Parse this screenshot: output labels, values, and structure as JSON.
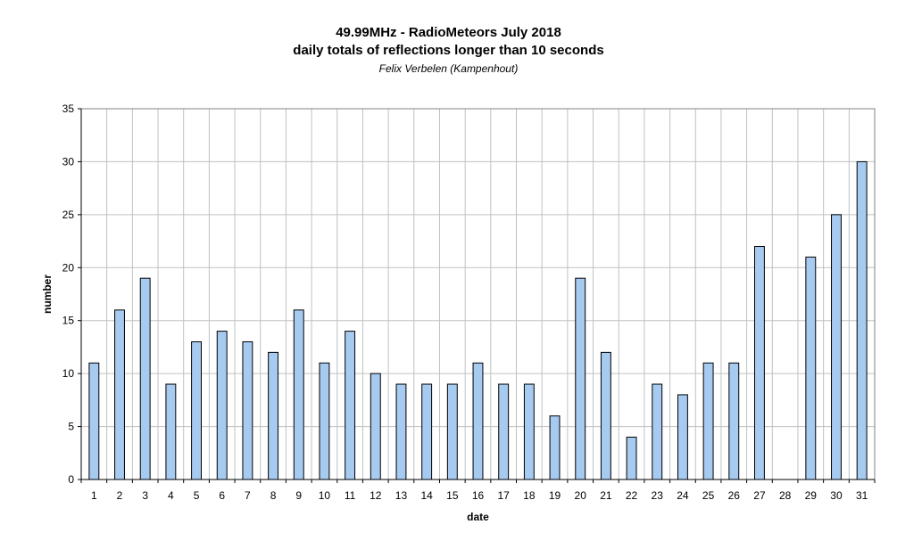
{
  "chart_data": {
    "type": "bar",
    "title": "49.99MHz - RadioMeteors July 2018",
    "subtitle": "daily totals of reflections longer than 10 seconds",
    "author": "Felix Verbelen (Kampenhout)",
    "xlabel": "date",
    "ylabel": "number",
    "ylim": [
      0,
      35
    ],
    "yticks": [
      0,
      5,
      10,
      15,
      20,
      25,
      30,
      35
    ],
    "grid": true,
    "bar_color": "#a6caf0",
    "categories": [
      "1",
      "2",
      "3",
      "4",
      "5",
      "6",
      "7",
      "8",
      "9",
      "10",
      "11",
      "12",
      "13",
      "14",
      "15",
      "16",
      "17",
      "18",
      "19",
      "20",
      "21",
      "22",
      "23",
      "24",
      "25",
      "26",
      "27",
      "28",
      "29",
      "30",
      "31"
    ],
    "values": [
      11,
      16,
      19,
      9,
      13,
      14,
      13,
      12,
      16,
      11,
      14,
      10,
      9,
      9,
      9,
      11,
      9,
      9,
      6,
      19,
      12,
      4,
      9,
      8,
      11,
      11,
      22,
      0,
      21,
      25,
      30
    ]
  }
}
